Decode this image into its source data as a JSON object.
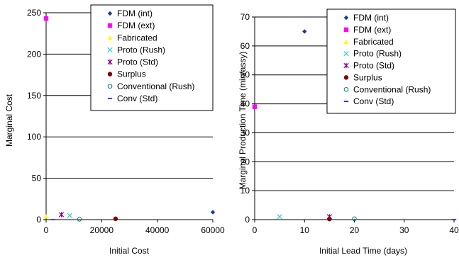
{
  "legend_entries": [
    {
      "name": "FDM (int)",
      "color": "#1F3A93",
      "marker": "diamond"
    },
    {
      "name": "FDM (ext)",
      "color": "#FF00FF",
      "marker": "square"
    },
    {
      "name": "Fabricated",
      "color": "#FFFF00",
      "marker": "triangle"
    },
    {
      "name": "Proto (Rush)",
      "color": "#33CCCC",
      "marker": "x"
    },
    {
      "name": "Proto (Std)",
      "color": "#800080",
      "marker": "star"
    },
    {
      "name": "Surplus",
      "color": "#800000",
      "marker": "circle"
    },
    {
      "name": "Conventional (Rush)",
      "color": "#008080",
      "marker": "open-circle"
    },
    {
      "name": "Conv (Std)",
      "color": "#0000FF",
      "marker": "dash"
    }
  ],
  "chart_data": [
    {
      "type": "scatter",
      "xlabel": "Initial Cost",
      "ylabel": "Marginal Cost",
      "xlim": [
        0,
        60000
      ],
      "ylim": [
        0,
        250
      ],
      "xticks": [
        0,
        20000,
        40000,
        60000
      ],
      "yticks": [
        0,
        50,
        100,
        150,
        200,
        250
      ],
      "grid": "horizontal",
      "legend_position": "top-right",
      "series": [
        {
          "name": "FDM (int)",
          "x": [
            60000
          ],
          "y": [
            9
          ]
        },
        {
          "name": "FDM (ext)",
          "x": [
            0
          ],
          "y": [
            243
          ]
        },
        {
          "name": "Fabricated",
          "x": [
            0
          ],
          "y": [
            4
          ]
        },
        {
          "name": "Proto (Rush)",
          "x": [
            8500
          ],
          "y": [
            5
          ]
        },
        {
          "name": "Proto (Std)",
          "x": [
            5500
          ],
          "y": [
            6
          ]
        },
        {
          "name": "Surplus",
          "x": [
            25000
          ],
          "y": [
            1
          ]
        },
        {
          "name": "Conventional (Rush)",
          "x": [
            12000
          ],
          "y": [
            0.5
          ]
        },
        {
          "name": "Conv (Std)",
          "x": [
            2500
          ],
          "y": [
            0
          ]
        }
      ]
    },
    {
      "type": "scatter",
      "xlabel": "Initial Lead Time (days)",
      "ylabel": "Marginal Production Time (min/assy)",
      "xlim": [
        0,
        40
      ],
      "ylim": [
        0,
        70
      ],
      "xticks": [
        0,
        10,
        20,
        30,
        40
      ],
      "yticks": [
        0,
        10,
        20,
        30,
        40,
        50,
        60,
        70
      ],
      "grid": "horizontal",
      "legend_position": "top-right",
      "series": [
        {
          "name": "FDM (int)",
          "x": [
            10
          ],
          "y": [
            65
          ]
        },
        {
          "name": "FDM (ext)",
          "x": [
            0
          ],
          "y": [
            39
          ]
        },
        {
          "name": "Fabricated",
          "x": [
            15
          ],
          "y": [
            0.5
          ]
        },
        {
          "name": "Proto (Rush)",
          "x": [
            5
          ],
          "y": [
            1
          ]
        },
        {
          "name": "Proto (Std)",
          "x": [
            15
          ],
          "y": [
            1
          ]
        },
        {
          "name": "Surplus",
          "x": [
            15
          ],
          "y": [
            0.2
          ]
        },
        {
          "name": "Conventional (Rush)",
          "x": [
            20
          ],
          "y": [
            0.3
          ]
        },
        {
          "name": "Conv (Std)",
          "x": [
            40
          ],
          "y": [
            0
          ]
        }
      ]
    }
  ]
}
